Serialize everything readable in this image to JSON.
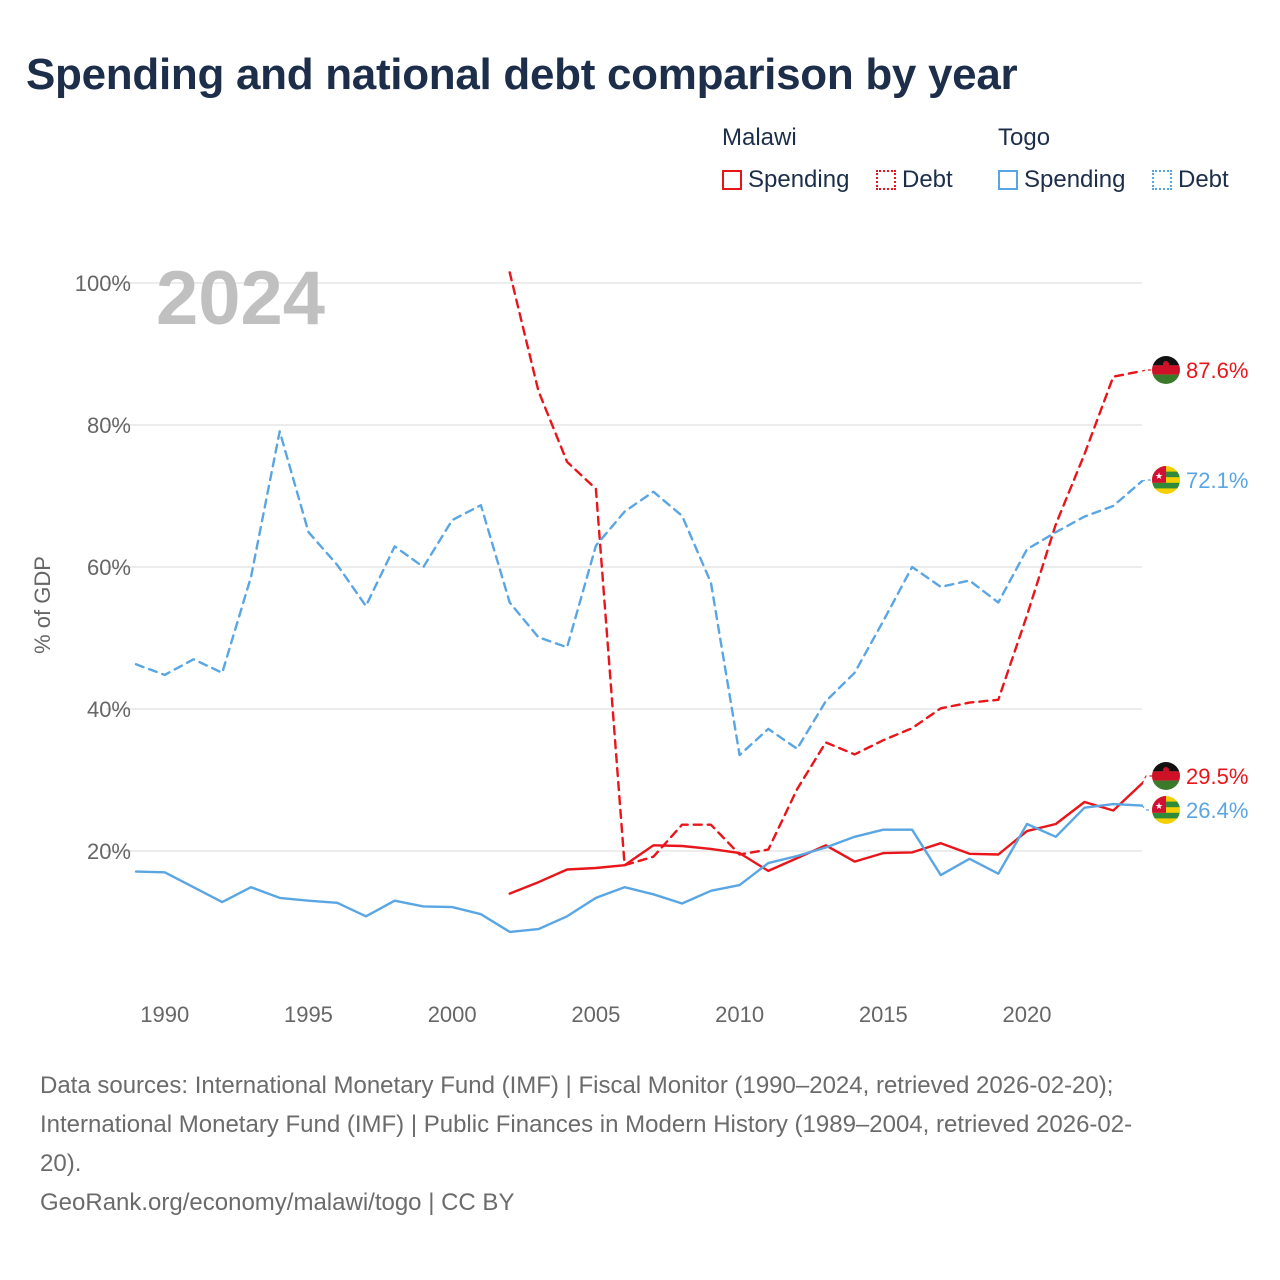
{
  "chart_data": {
    "type": "line",
    "title": "Spending and national debt comparison by year",
    "ylabel": "% of GDP",
    "xlabel": "",
    "year_watermark": "2024",
    "xlim": [
      1989,
      2024
    ],
    "ylim": [
      0,
      100
    ],
    "x_ticks": [
      1990,
      1995,
      2000,
      2005,
      2010,
      2015,
      2020
    ],
    "y_ticks": [
      20,
      40,
      60,
      80,
      100
    ],
    "y_tick_labels": [
      "20%",
      "40%",
      "60%",
      "80%",
      "100%"
    ],
    "legend": {
      "groups": [
        {
          "country": "Malawi",
          "items": [
            "Spending",
            "Debt"
          ],
          "color": "#e8151b"
        },
        {
          "country": "Togo",
          "items": [
            "Spending",
            "Debt"
          ],
          "color": "#5aa6e3"
        }
      ]
    },
    "series": [
      {
        "name": "Malawi Spending",
        "country": "Malawi",
        "metric": "Spending",
        "style": "solid",
        "color": "#e8151b",
        "x": [
          2002,
          2003,
          2004,
          2005,
          2006,
          2007,
          2008,
          2009,
          2010,
          2011,
          2012,
          2013,
          2014,
          2015,
          2016,
          2017,
          2018,
          2019,
          2020,
          2021,
          2022,
          2023,
          2024
        ],
        "values": [
          14.0,
          15.6,
          17.4,
          17.6,
          18.0,
          20.8,
          20.7,
          20.3,
          19.7,
          17.2,
          19.0,
          20.8,
          18.5,
          19.7,
          19.8,
          21.1,
          19.6,
          19.5,
          22.8,
          23.8,
          26.9,
          25.7,
          29.5
        ],
        "end_label": "29.5%"
      },
      {
        "name": "Malawi Debt",
        "country": "Malawi",
        "metric": "Debt",
        "style": "dashed",
        "color": "#e8151b",
        "x": [
          2002,
          2003,
          2004,
          2005,
          2006,
          2007,
          2008,
          2009,
          2010,
          2011,
          2012,
          2013,
          2014,
          2015,
          2016,
          2017,
          2018,
          2019,
          2020,
          2021,
          2022,
          2023,
          2024
        ],
        "values": [
          101.5,
          84.8,
          74.8,
          71.0,
          18.0,
          19.2,
          23.7,
          23.7,
          19.5,
          20.2,
          28.7,
          35.3,
          33.6,
          35.6,
          37.3,
          40.1,
          40.9,
          41.3,
          53.2,
          66.0,
          75.9,
          86.8,
          87.6
        ],
        "end_label": "87.6%"
      },
      {
        "name": "Togo Spending",
        "country": "Togo",
        "metric": "Spending",
        "style": "solid",
        "color": "#5aa6e3",
        "x": [
          1989,
          1990,
          1991,
          1992,
          1993,
          1994,
          1995,
          1996,
          1997,
          1998,
          1999,
          2000,
          2001,
          2002,
          2003,
          2004,
          2005,
          2006,
          2007,
          2008,
          2009,
          2010,
          2011,
          2012,
          2013,
          2014,
          2015,
          2016,
          2017,
          2018,
          2019,
          2020,
          2021,
          2022,
          2023,
          2024
        ],
        "values": [
          17.1,
          17.0,
          14.9,
          12.8,
          14.9,
          13.4,
          13.0,
          12.7,
          10.8,
          13.0,
          12.2,
          12.1,
          11.1,
          8.6,
          9.0,
          10.8,
          13.4,
          14.9,
          13.9,
          12.6,
          14.4,
          15.2,
          18.3,
          19.3,
          20.5,
          22.0,
          23.0,
          23.0,
          16.6,
          18.9,
          16.8,
          23.8,
          22.0,
          26.1,
          26.6,
          26.4
        ],
        "end_label": "26.4%"
      },
      {
        "name": "Togo Debt",
        "country": "Togo",
        "metric": "Debt",
        "style": "dashed",
        "color": "#5aa6e3",
        "x": [
          1989,
          1990,
          1991,
          1992,
          1993,
          1994,
          1995,
          1996,
          1997,
          1998,
          1999,
          2000,
          2001,
          2002,
          2003,
          2004,
          2005,
          2006,
          2007,
          2008,
          2009,
          2010,
          2011,
          2012,
          2013,
          2014,
          2015,
          2016,
          2017,
          2018,
          2019,
          2020,
          2021,
          2022,
          2023,
          2024
        ],
        "values": [
          46.3,
          44.8,
          47.0,
          45.1,
          58.6,
          79.1,
          64.9,
          60.3,
          54.5,
          62.9,
          60.0,
          66.6,
          68.7,
          55.0,
          50.1,
          48.7,
          63.0,
          67.8,
          70.6,
          67.2,
          57.8,
          33.5,
          37.2,
          34.4,
          41.1,
          45.1,
          52.4,
          60.0,
          57.2,
          58.1,
          55.0,
          62.5,
          64.9,
          67.1,
          68.6,
          72.1
        ],
        "end_label": "72.1%"
      }
    ]
  },
  "legend_labels": {
    "malawi": "Malawi",
    "togo": "Togo",
    "spending": "Spending",
    "debt": "Debt"
  },
  "colors": {
    "malawi": "#e8151b",
    "togo": "#5aa6e3",
    "title": "#1c2e4a",
    "watermark": "#c0c0c0",
    "axis_text": "#666666",
    "grid": "#e6e6e6"
  },
  "footer": {
    "line1": "Data sources: International Monetary Fund (IMF) | Fiscal Monitor (1990–2024, retrieved 2026-02-20);",
    "line2": "International Monetary Fund (IMF) | Public Finances in Modern History (1989–2004, retrieved 2026-02-",
    "line3": "20).",
    "line4": "GeoRank.org/economy/malawi/togo | CC BY"
  },
  "icons": {
    "malawi_flag": "malawi-flag-icon",
    "togo_flag": "togo-flag-icon"
  }
}
